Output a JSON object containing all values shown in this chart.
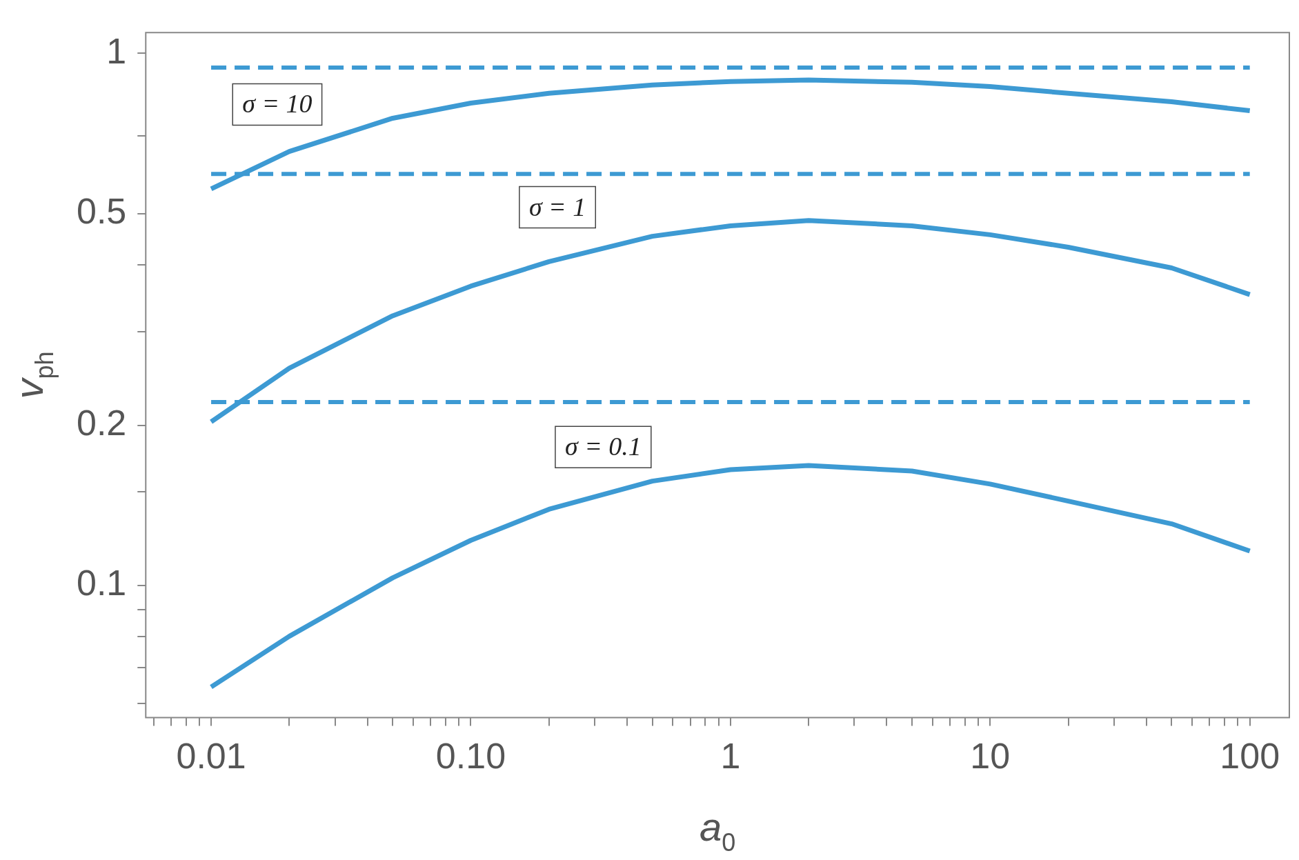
{
  "chart_data": {
    "type": "line",
    "xlabel": "a$_{0}$",
    "ylabel": "v$_{ph}$",
    "log": "xy",
    "marker": "none",
    "line_style": "solid",
    "xlim": [
      0.0056,
      142
    ],
    "ylim": [
      0.0564,
      1.094
    ],
    "xticks": [
      {
        "value": 0.006,
        "label": null
      },
      {
        "value": 0.007,
        "label": null
      },
      {
        "value": 0.008,
        "label": null
      },
      {
        "value": 0.009,
        "label": null
      },
      0.01,
      {
        "value": 0.02,
        "label": null
      },
      {
        "value": 0.03,
        "label": null
      },
      {
        "value": 0.04,
        "label": null
      },
      {
        "value": 0.05,
        "label": null
      },
      {
        "value": 0.06,
        "label": null
      },
      {
        "value": 0.07,
        "label": null
      },
      {
        "value": 0.08,
        "label": null
      },
      {
        "value": 0.09,
        "label": null
      },
      {
        "value": 0.1,
        "label": "0.10"
      },
      {
        "value": 0.2,
        "label": null
      },
      {
        "value": 0.3,
        "label": null
      },
      {
        "value": 0.4,
        "label": null
      },
      {
        "value": 0.5,
        "label": null
      },
      {
        "value": 0.6,
        "label": null
      },
      {
        "value": 0.7,
        "label": null
      },
      {
        "value": 0.8,
        "label": null
      },
      {
        "value": 0.9,
        "label": null
      },
      1,
      {
        "value": 2,
        "label": null
      },
      {
        "value": 3,
        "label": null
      },
      {
        "value": 4,
        "label": null
      },
      {
        "value": 5,
        "label": null
      },
      {
        "value": 6,
        "label": null
      },
      {
        "value": 7,
        "label": null
      },
      {
        "value": 8,
        "label": null
      },
      {
        "value": 9,
        "label": null
      },
      10,
      {
        "value": 20,
        "label": null
      },
      {
        "value": 30,
        "label": null
      },
      {
        "value": 40,
        "label": null
      },
      {
        "value": 50,
        "label": null
      },
      {
        "value": 60,
        "label": null
      },
      {
        "value": 70,
        "label": null
      },
      {
        "value": 80,
        "label": null
      },
      {
        "value": 90,
        "label": null
      },
      100
    ],
    "yticks": [
      {
        "value": 0.06,
        "label": null
      },
      {
        "value": 0.07,
        "label": null
      },
      {
        "value": 0.08,
        "label": null
      },
      {
        "value": 0.09,
        "label": null
      },
      0.1,
      {
        "value": 0.15,
        "label": null
      },
      0.2,
      {
        "value": 0.3,
        "label": null
      },
      {
        "value": 0.4,
        "label": null
      },
      0.5,
      {
        "value": 0.7,
        "label": null
      },
      1
    ],
    "x": [
      0.01,
      0.02,
      0.05,
      0.1,
      0.2,
      0.5,
      1,
      2,
      5,
      10,
      20,
      50,
      100
    ],
    "series": [
      {
        "color": "#3d9ad3",
        "values": [
          0.556,
          0.654,
          0.755,
          0.806,
          0.841,
          0.872,
          0.885,
          0.891,
          0.882,
          0.866,
          0.841,
          0.811,
          0.78
        ]
      },
      {
        "color": "#3d9ad3",
        "values": [
          0.203,
          0.256,
          0.321,
          0.365,
          0.406,
          0.453,
          0.474,
          0.485,
          0.474,
          0.456,
          0.432,
          0.395,
          0.352
        ]
      },
      {
        "color": "#3d9ad3",
        "values": [
          0.0644,
          0.0802,
          0.1033,
          0.1215,
          0.139,
          0.157,
          0.165,
          0.168,
          0.164,
          0.155,
          0.144,
          0.1305,
          0.116
        ]
      }
    ],
    "ref_lines": [
      {
        "axis": "y",
        "value": 0.94,
        "color": "#3d9ad3",
        "line_style": "dashed"
      },
      {
        "axis": "y",
        "value": 0.593,
        "color": "#3d9ad3",
        "line_style": "dashed"
      },
      {
        "axis": "y",
        "value": 0.221,
        "color": "#3d9ad3",
        "line_style": "dashed"
      }
    ],
    "annotations": [
      "σ = 10",
      "σ = 1",
      "σ = 0.1"
    ]
  }
}
